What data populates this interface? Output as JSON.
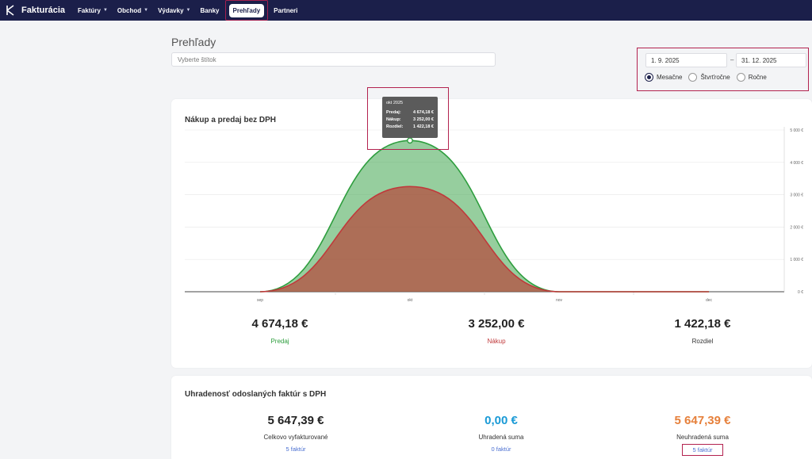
{
  "colors": {
    "nav_bg": "#1b1f4a",
    "highlight": "#b3224f",
    "predaj": "#2e9e3e",
    "nakup": "#c0393b",
    "blue": "#1a9ad6",
    "orange": "#e6803b",
    "link": "#4a6fd1"
  },
  "nav": {
    "brand": "Fakturácia",
    "items": [
      {
        "label": "Faktúry",
        "has_dropdown": true
      },
      {
        "label": "Obchod",
        "has_dropdown": true
      },
      {
        "label": "Výdavky",
        "has_dropdown": true
      },
      {
        "label": "Banky",
        "has_dropdown": false
      },
      {
        "label": "Prehľady",
        "active": true
      },
      {
        "label": "Partneri",
        "has_dropdown": false
      }
    ]
  },
  "page": {
    "title": "Prehľady",
    "tag_placeholder": "Vyberte štítok"
  },
  "period": {
    "date_from": "1. 9. 2025",
    "separator": "–",
    "date_to": "31. 12. 2025",
    "options": [
      {
        "label": "Mesačne",
        "checked": true
      },
      {
        "label": "Štvrťročne",
        "checked": false
      },
      {
        "label": "Ročne",
        "checked": false
      }
    ]
  },
  "chart_card": {
    "title": "Nákup a predaj bez DPH"
  },
  "chart_data": {
    "type": "area",
    "title": "Nákup a predaj bez DPH",
    "categories": [
      "sep",
      "okt",
      "nov",
      "dec"
    ],
    "series": [
      {
        "name": "Predaj",
        "values": [
          0,
          4674.18,
          0,
          0
        ]
      },
      {
        "name": "Nákup",
        "values": [
          0,
          3252.0,
          0,
          0
        ]
      }
    ],
    "y_ticks": [
      "0 €",
      "1 000 €",
      "2 000 €",
      "3 000 €",
      "4 000 €",
      "5 000 €"
    ],
    "ylim": [
      0,
      5000
    ],
    "grid": true
  },
  "tooltip": {
    "title": "okt 2025",
    "rows": [
      {
        "label": "Predaj:",
        "value": "4 674,18 €"
      },
      {
        "label": "Nákup:",
        "value": "3 252,00 €"
      },
      {
        "label": "Rozdiel:",
        "value": "1 422,18 €"
      }
    ]
  },
  "summary": {
    "predaj": {
      "value": "4 674,18 €",
      "label": "Predaj"
    },
    "nakup": {
      "value": "3 252,00 €",
      "label": "Nákup"
    },
    "rozdiel": {
      "value": "1 422,18 €",
      "label": "Rozdiel"
    }
  },
  "payments_card": {
    "title": "Uhradenosť odoslaných faktúr s DPH",
    "stats": [
      {
        "value": "5 647,39 €",
        "label": "Celkovo vyfakturované",
        "link": "5 faktúr"
      },
      {
        "value": "0,00 €",
        "label": "Uhradená suma",
        "link": "0 faktúr"
      },
      {
        "value": "5 647,39 €",
        "label": "Neuhradená suma",
        "link": "5 faktúr"
      }
    ]
  }
}
